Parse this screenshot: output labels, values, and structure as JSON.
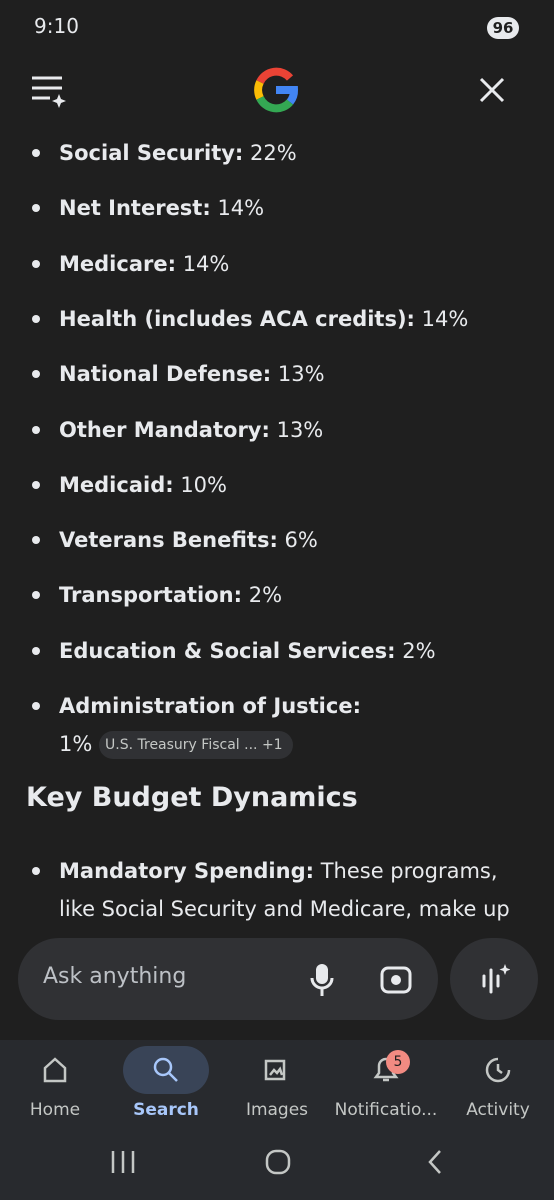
{
  "status": {
    "time": "9:10",
    "battery": "96"
  },
  "list": [
    {
      "label": "Social Security:",
      "value": "22%"
    },
    {
      "label": "Net Interest:",
      "value": "14%"
    },
    {
      "label": "Medicare:",
      "value": "14%"
    },
    {
      "label": "Health (includes ACA credits):",
      "value": "14%"
    },
    {
      "label": "National Defense:",
      "value": "13%"
    },
    {
      "label": "Other Mandatory:",
      "value": "13%"
    },
    {
      "label": "Medicaid:",
      "value": "10%"
    },
    {
      "label": "Veterans Benefits:",
      "value": "6%"
    },
    {
      "label": "Transportation:",
      "value": "2%"
    },
    {
      "label": "Education & Social Services:",
      "value": "2%"
    },
    {
      "label": "Administration of Justice:",
      "value": "1%"
    }
  ],
  "source": {
    "label": "U.S. Treasury Fiscal ...",
    "more": "+1"
  },
  "section": {
    "heading": "Key Budget Dynamics",
    "items": [
      {
        "label": "Mandatory Spending:",
        "text": "These programs, like Social Security and Medicare, make up"
      }
    ]
  },
  "input": {
    "placeholder": "Ask anything"
  },
  "nav": {
    "items": [
      "Home",
      "Search",
      "Images",
      "Notificatio...",
      "Activity"
    ],
    "badge": "5"
  }
}
